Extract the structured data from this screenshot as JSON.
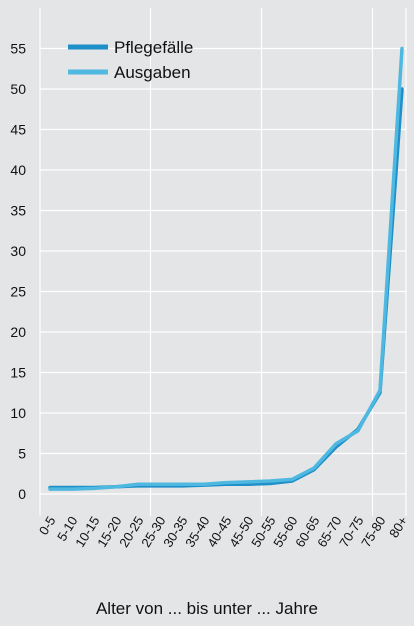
{
  "chart_data": {
    "type": "line",
    "title": "",
    "xlabel": "Alter von ... bis unter ... Jahre",
    "ylabel": "",
    "ylim": [
      0,
      60
    ],
    "yticks": [
      0,
      5,
      10,
      15,
      20,
      25,
      30,
      35,
      40,
      45,
      50,
      55
    ],
    "grid": true,
    "legend_position": "top-left",
    "categories": [
      "0-5",
      "5-10",
      "10-15",
      "15-20",
      "20-25",
      "25-30",
      "30-35",
      "35-40",
      "40-45",
      "45-50",
      "50-55",
      "55-60",
      "60-65",
      "65-70",
      "70-75",
      "75-80",
      "80+"
    ],
    "series": [
      {
        "name": "Pflegefälle",
        "color": "#1e8fc8",
        "values": [
          0.8,
          0.8,
          0.8,
          0.9,
          1.0,
          1.0,
          1.0,
          1.1,
          1.2,
          1.2,
          1.3,
          1.6,
          3.0,
          5.8,
          8.0,
          12.5,
          50.0
        ]
      },
      {
        "name": "Ausgaben",
        "color": "#4fb8e0",
        "values": [
          0.6,
          0.6,
          0.7,
          0.9,
          1.2,
          1.2,
          1.2,
          1.2,
          1.4,
          1.5,
          1.6,
          1.8,
          3.2,
          6.2,
          7.8,
          12.8,
          55.0
        ]
      }
    ]
  }
}
